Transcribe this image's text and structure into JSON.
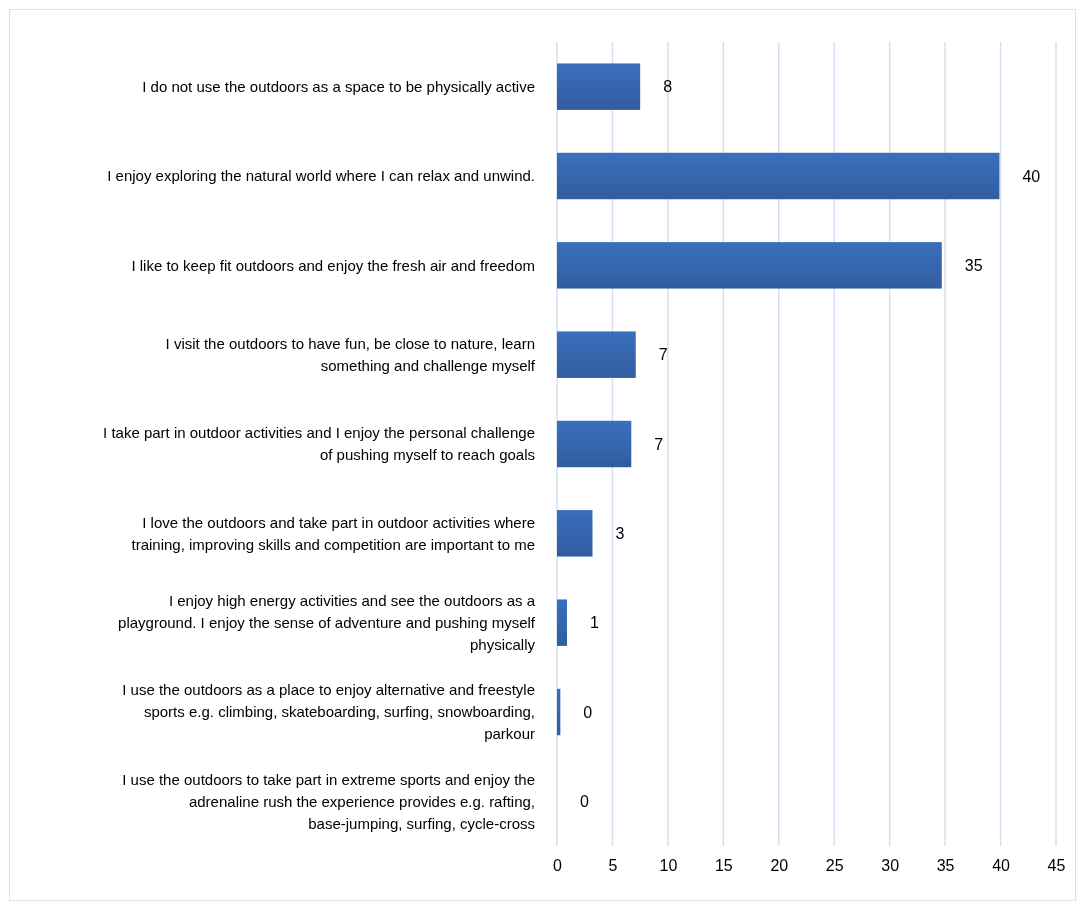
{
  "chart_data": {
    "type": "bar",
    "orientation": "horizontal",
    "categories": [
      "I do not use the outdoors as a space to be physically active",
      "I enjoy exploring the natural world where I can relax and unwind.",
      "I like to keep fit outdoors and enjoy the fresh air and freedom",
      "I visit the outdoors to have fun, be close to nature, learn something and challenge myself",
      "I take part in outdoor activities and I enjoy the personal challenge of pushing myself to reach goals",
      "I love the outdoors and take part in outdoor activities where training, improving skills and competition are important to me",
      "I enjoy high energy activities and see the outdoors as a playground. I enjoy the sense of adventure and pushing myself physically",
      "I use the outdoors as a place to enjoy alternative and freestyle sports e.g. climbing, skateboarding, surfing, snowboarding, parkour",
      "I use the outdoors to take part in extreme sports and enjoy the adrenaline rush the experience provides e.g. rafting, base-jumping, surfing, cycle-cross"
    ],
    "values": [
      7.5,
      39.9,
      34.7,
      7.1,
      6.7,
      3.2,
      0.9,
      0.3,
      0
    ],
    "value_labels": [
      "8",
      "40",
      "35",
      "7",
      "7",
      "3",
      "1",
      "0",
      "0"
    ],
    "color": "#3a6fbd",
    "xlim": [
      0,
      45
    ],
    "xticks": [
      0,
      5,
      10,
      15,
      20,
      25,
      30,
      35,
      40,
      45
    ],
    "grid": "x"
  }
}
